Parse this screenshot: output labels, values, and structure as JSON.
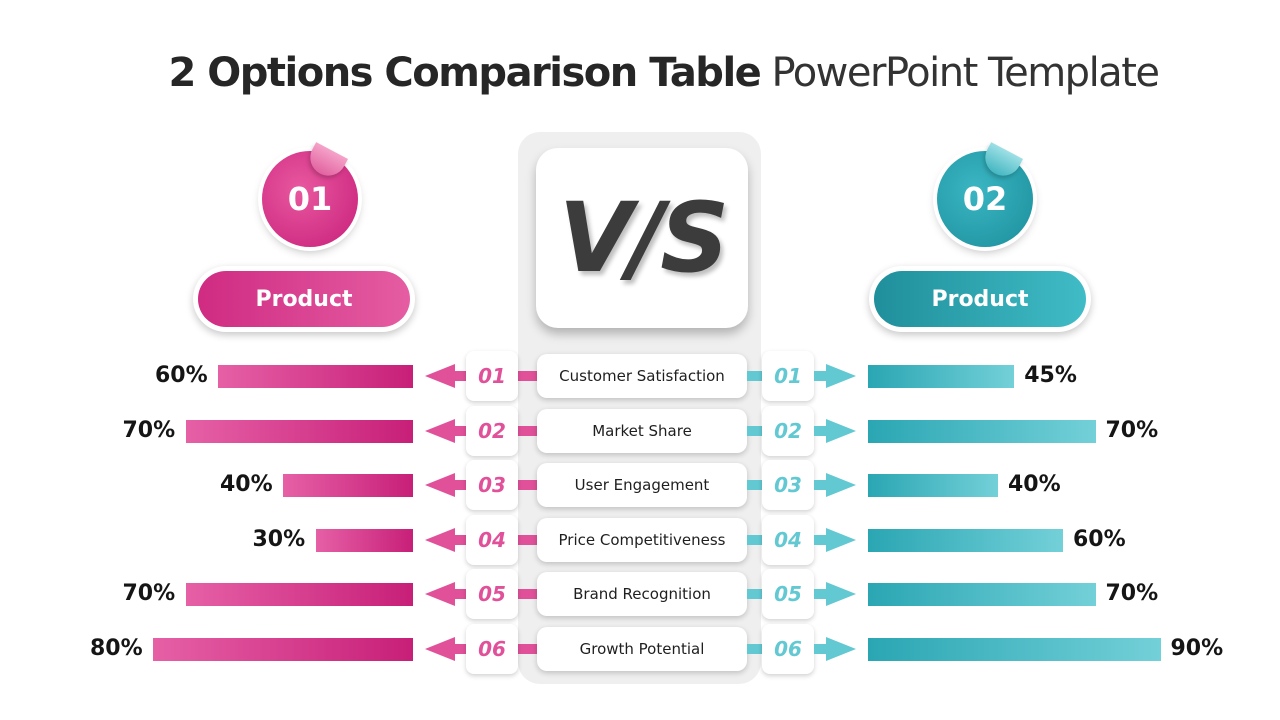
{
  "title": {
    "bold": "2 Options Comparison Table",
    "light": "PowerPoint Template"
  },
  "center": {
    "vs": "V/S"
  },
  "colors": {
    "left_accent": "#d62f87",
    "right_accent": "#2ba6b2"
  },
  "left": {
    "number": "01",
    "label": "Product"
  },
  "right": {
    "number": "02",
    "label": "Product"
  },
  "rows": [
    {
      "num": "01",
      "criterion": "Customer Satisfaction",
      "left_pct": "60%",
      "right_pct": "45%"
    },
    {
      "num": "02",
      "criterion": "Market Share",
      "left_pct": "70%",
      "right_pct": "70%"
    },
    {
      "num": "03",
      "criterion": "User Engagement",
      "left_pct": "40%",
      "right_pct": "40%"
    },
    {
      "num": "04",
      "criterion": "Price Competitiveness",
      "left_pct": "30%",
      "right_pct": "60%"
    },
    {
      "num": "05",
      "criterion": "Brand Recognition",
      "left_pct": "70%",
      "right_pct": "70%"
    },
    {
      "num": "06",
      "criterion": "Growth Potential",
      "left_pct": "80%",
      "right_pct": "90%"
    }
  ]
}
